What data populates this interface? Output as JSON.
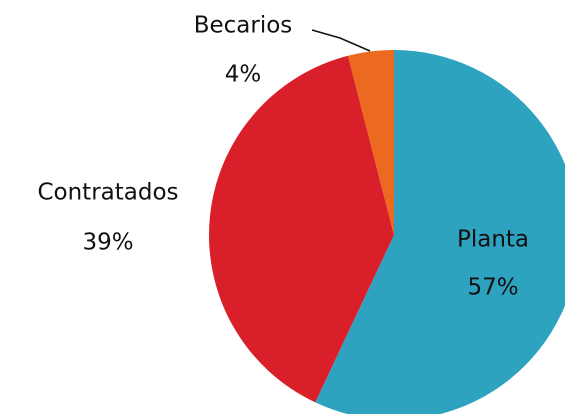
{
  "chart_data": {
    "type": "pie",
    "categories": [
      "Planta",
      "Contratados",
      "Becarios"
    ],
    "values": [
      57,
      39,
      4
    ],
    "value_labels": [
      "57%",
      "39%",
      "4%"
    ],
    "colors": [
      "#2ea3c0",
      "#d9202a",
      "#ec6a1f"
    ]
  }
}
